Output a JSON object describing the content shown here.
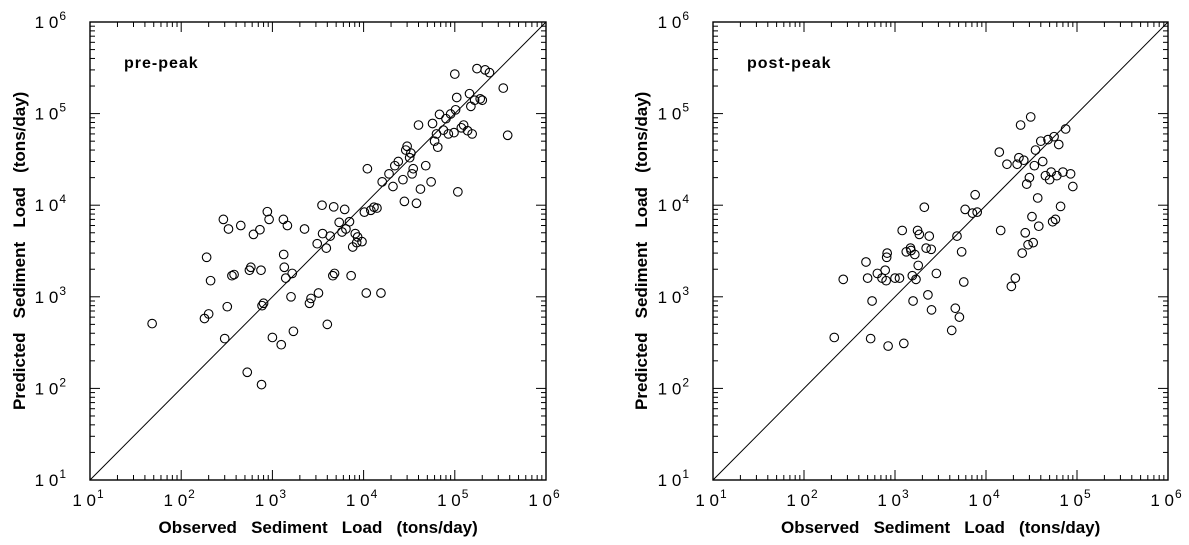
{
  "chart_data": [
    {
      "type": "scatter",
      "panel_label": "pre-peak",
      "xlabel": "Observed   Sediment   Load   (tons/day)",
      "ylabel": "Predicted   Sediment   Load   (tons/day)",
      "xscale": "log",
      "yscale": "log",
      "xlim": [
        10,
        1000000
      ],
      "ylim": [
        10,
        1000000
      ],
      "tick_values": [
        10,
        100,
        1000,
        10000,
        100000,
        1000000
      ],
      "tick_labels": [
        {
          "base": "1 0",
          "exp": "1"
        },
        {
          "base": "1 0",
          "exp": "2"
        },
        {
          "base": "1 0",
          "exp": "3"
        },
        {
          "base": "1 0",
          "exp": "4"
        },
        {
          "base": "1 0",
          "exp": "5"
        },
        {
          "base": "1 0",
          "exp": "6"
        }
      ],
      "reference_line": "1:1",
      "grid": false,
      "points": [
        [
          48,
          510
        ],
        [
          180,
          580
        ],
        [
          190,
          2700
        ],
        [
          210,
          1500
        ],
        [
          200,
          650
        ],
        [
          290,
          7000
        ],
        [
          330,
          5500
        ],
        [
          300,
          350
        ],
        [
          320,
          780
        ],
        [
          360,
          1700
        ],
        [
          380,
          1750
        ],
        [
          450,
          6000
        ],
        [
          530,
          150
        ],
        [
          560,
          1950
        ],
        [
          580,
          2100
        ],
        [
          620,
          4800
        ],
        [
          730,
          5400
        ],
        [
          750,
          1950
        ],
        [
          760,
          110
        ],
        [
          770,
          800
        ],
        [
          800,
          850
        ],
        [
          880,
          8500
        ],
        [
          920,
          7000
        ],
        [
          1000,
          360
        ],
        [
          1250,
          300
        ],
        [
          1320,
          7000
        ],
        [
          1330,
          2900
        ],
        [
          1350,
          2100
        ],
        [
          1400,
          1600
        ],
        [
          1460,
          6000
        ],
        [
          1600,
          1000
        ],
        [
          1650,
          1800
        ],
        [
          1700,
          420
        ],
        [
          2250,
          5500
        ],
        [
          2550,
          850
        ],
        [
          2650,
          960
        ],
        [
          3100,
          3800
        ],
        [
          3200,
          1100
        ],
        [
          3500,
          10000
        ],
        [
          3550,
          4900
        ],
        [
          3900,
          3400
        ],
        [
          4000,
          500
        ],
        [
          4300,
          4600
        ],
        [
          4600,
          1700
        ],
        [
          4700,
          9600
        ],
        [
          4800,
          1800
        ],
        [
          5400,
          6500
        ],
        [
          5800,
          5100
        ],
        [
          6200,
          9000
        ],
        [
          6400,
          5500
        ],
        [
          7000,
          6600
        ],
        [
          7300,
          1700
        ],
        [
          7600,
          3500
        ],
        [
          8100,
          4900
        ],
        [
          8400,
          3900
        ],
        [
          8600,
          4500
        ],
        [
          9600,
          4000
        ],
        [
          10200,
          8400
        ],
        [
          10700,
          1100
        ],
        [
          11000,
          25000
        ],
        [
          12000,
          8800
        ],
        [
          13000,
          9500
        ],
        [
          14000,
          9300
        ],
        [
          15500,
          1100
        ],
        [
          16000,
          18000
        ],
        [
          19000,
          22000
        ],
        [
          21000,
          16000
        ],
        [
          22000,
          27000
        ],
        [
          24000,
          30000
        ],
        [
          27000,
          19000
        ],
        [
          28000,
          11000
        ],
        [
          29000,
          40000
        ],
        [
          30000,
          44000
        ],
        [
          32000,
          33000
        ],
        [
          33000,
          37000
        ],
        [
          34000,
          22000
        ],
        [
          35000,
          25000
        ],
        [
          38000,
          10500
        ],
        [
          40000,
          75000
        ],
        [
          42000,
          15000
        ],
        [
          48000,
          27000
        ],
        [
          55000,
          18000
        ],
        [
          57000,
          78000
        ],
        [
          60000,
          50000
        ],
        [
          63000,
          60000
        ],
        [
          65000,
          43000
        ],
        [
          68000,
          98000
        ],
        [
          75000,
          66000
        ],
        [
          80000,
          88000
        ],
        [
          85000,
          60000
        ],
        [
          90000,
          99000
        ],
        [
          98000,
          62000
        ],
        [
          100000,
          270000
        ],
        [
          102000,
          110000
        ],
        [
          105000,
          150000
        ],
        [
          108000,
          14000
        ],
        [
          118000,
          70000
        ],
        [
          125000,
          75000
        ],
        [
          138000,
          65000
        ],
        [
          145000,
          165000
        ],
        [
          150000,
          120000
        ],
        [
          155000,
          60000
        ],
        [
          165000,
          140000
        ],
        [
          175000,
          310000
        ],
        [
          190000,
          145000
        ],
        [
          200000,
          140000
        ],
        [
          215000,
          300000
        ],
        [
          240000,
          280000
        ],
        [
          340000,
          190000
        ],
        [
          380000,
          58000
        ]
      ]
    },
    {
      "type": "scatter",
      "panel_label": "post-peak",
      "xlabel": "Observed   Sediment   Load   (tons/day)",
      "ylabel": "Predicted   Sediment   Load   (tons/day)",
      "xscale": "log",
      "yscale": "log",
      "xlim": [
        10,
        1000000
      ],
      "ylim": [
        10,
        1000000
      ],
      "tick_values": [
        10,
        100,
        1000,
        10000,
        100000,
        1000000
      ],
      "tick_labels": [
        {
          "base": "1 0",
          "exp": "1"
        },
        {
          "base": "1 0",
          "exp": "2"
        },
        {
          "base": "1 0",
          "exp": "3"
        },
        {
          "base": "1 0",
          "exp": "4"
        },
        {
          "base": "1 0",
          "exp": "5"
        },
        {
          "base": "1 0",
          "exp": "6"
        }
      ],
      "reference_line": "1:1",
      "grid": false,
      "points": [
        [
          215,
          360
        ],
        [
          270,
          1550
        ],
        [
          480,
          2400
        ],
        [
          500,
          1600
        ],
        [
          540,
          350
        ],
        [
          560,
          900
        ],
        [
          640,
          1800
        ],
        [
          720,
          1600
        ],
        [
          780,
          1950
        ],
        [
          800,
          1500
        ],
        [
          810,
          2700
        ],
        [
          820,
          3000
        ],
        [
          840,
          290
        ],
        [
          1000,
          1600
        ],
        [
          1120,
          1600
        ],
        [
          1200,
          5300
        ],
        [
          1250,
          310
        ],
        [
          1330,
          3100
        ],
        [
          1480,
          3400
        ],
        [
          1500,
          3200
        ],
        [
          1550,
          1700
        ],
        [
          1580,
          900
        ],
        [
          1650,
          2900
        ],
        [
          1700,
          1550
        ],
        [
          1770,
          5300
        ],
        [
          1800,
          2200
        ],
        [
          1850,
          4800
        ],
        [
          2100,
          9500
        ],
        [
          2200,
          3400
        ],
        [
          2300,
          1050
        ],
        [
          2380,
          4600
        ],
        [
          2500,
          3300
        ],
        [
          2520,
          720
        ],
        [
          2850,
          1800
        ],
        [
          4200,
          430
        ],
        [
          4600,
          750
        ],
        [
          4800,
          4600
        ],
        [
          5100,
          600
        ],
        [
          5400,
          3100
        ],
        [
          5700,
          1450
        ],
        [
          5900,
          9000
        ],
        [
          7100,
          8200
        ],
        [
          7600,
          13000
        ],
        [
          8000,
          8400
        ],
        [
          14000,
          38000
        ],
        [
          14500,
          5300
        ],
        [
          17000,
          28000
        ],
        [
          19000,
          1300
        ],
        [
          21000,
          1600
        ],
        [
          22000,
          28000
        ],
        [
          23000,
          33000
        ],
        [
          24000,
          75000
        ],
        [
          25000,
          3000
        ],
        [
          26000,
          31000
        ],
        [
          27000,
          5000
        ],
        [
          28000,
          17000
        ],
        [
          29000,
          3700
        ],
        [
          30000,
          20000
        ],
        [
          31000,
          92000
        ],
        [
          32000,
          7500
        ],
        [
          33000,
          3900
        ],
        [
          34000,
          27000
        ],
        [
          35000,
          40000
        ],
        [
          37000,
          12000
        ],
        [
          38000,
          5900
        ],
        [
          40000,
          50000
        ],
        [
          42000,
          30000
        ],
        [
          45000,
          21000
        ],
        [
          48000,
          52000
        ],
        [
          50000,
          19000
        ],
        [
          52000,
          23000
        ],
        [
          54000,
          6600
        ],
        [
          56000,
          56000
        ],
        [
          58000,
          7000
        ],
        [
          60000,
          21000
        ],
        [
          63000,
          46000
        ],
        [
          66000,
          9700
        ],
        [
          70000,
          23000
        ],
        [
          75000,
          68000
        ],
        [
          85000,
          22000
        ],
        [
          90000,
          16000
        ]
      ]
    }
  ]
}
